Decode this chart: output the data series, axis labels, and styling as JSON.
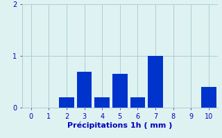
{
  "categories": [
    0,
    1,
    2,
    3,
    4,
    5,
    6,
    7,
    8,
    9,
    10
  ],
  "values": [
    0,
    0,
    0.2,
    0.7,
    0.2,
    0.65,
    0.2,
    1.0,
    0,
    0,
    0.4
  ],
  "bar_color": "#0033cc",
  "background_color": "#dff2f2",
  "xlabel": "Précipitations 1h ( mm )",
  "ylim": [
    0,
    2.0
  ],
  "yticks": [
    0,
    1,
    2
  ],
  "xticks": [
    0,
    1,
    2,
    3,
    4,
    5,
    6,
    7,
    8,
    9,
    10
  ],
  "xlim": [
    -0.5,
    10.5
  ],
  "grid_color": "#aacece",
  "xlabel_fontsize": 8,
  "tick_fontsize": 7,
  "tick_color": "#0000bb",
  "label_color": "#0000bb",
  "bar_width": 0.85
}
